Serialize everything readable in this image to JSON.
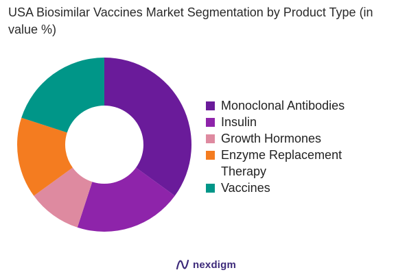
{
  "title": "USA Biosimilar Vaccines Market Segmentation by Product Type (in value %)",
  "chart_data": {
    "type": "pie",
    "title": "USA Biosimilar Vaccines Market Segmentation by Product Type (in value %)",
    "donut": true,
    "start_angle_deg": 0,
    "legend_position": "right",
    "series": [
      {
        "name": "Monoclonal Antibodies",
        "value": 35,
        "color": "#6a1b9a"
      },
      {
        "name": "Insulin",
        "value": 20,
        "color": "#8e24aa"
      },
      {
        "name": "Growth Hormones",
        "value": 10,
        "color": "#de8aa0"
      },
      {
        "name": "Enzyme Replacement Therapy",
        "value": 15,
        "color": "#f47c20"
      },
      {
        "name": "Vaccines",
        "value": 20,
        "color": "#009688"
      }
    ]
  },
  "brand": {
    "name": "nexdigm",
    "icon": "nexdigm-logo-icon"
  }
}
